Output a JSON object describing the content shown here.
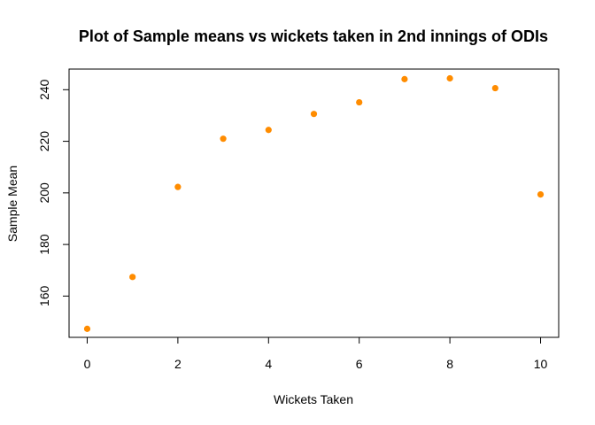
{
  "chart_data": {
    "type": "scatter",
    "title": "Plot of Sample means vs wickets taken in 2nd innings of ODIs",
    "xlabel": "Wickets Taken",
    "ylabel": "Sample Mean",
    "x": [
      0,
      1,
      2,
      3,
      4,
      5,
      6,
      7,
      8,
      9,
      10
    ],
    "y": [
      147.3,
      167.4,
      202.3,
      221.0,
      224.4,
      230.6,
      235.1,
      244.1,
      244.4,
      240.6,
      199.4
    ],
    "xlim": [
      -0.4,
      10.4
    ],
    "ylim": [
      144,
      248
    ],
    "xticks": [
      0,
      2,
      4,
      6,
      8,
      10
    ],
    "yticks": [
      160,
      180,
      200,
      220,
      240
    ],
    "point_color": "#FF8C00",
    "grid": false,
    "legend": "none"
  }
}
